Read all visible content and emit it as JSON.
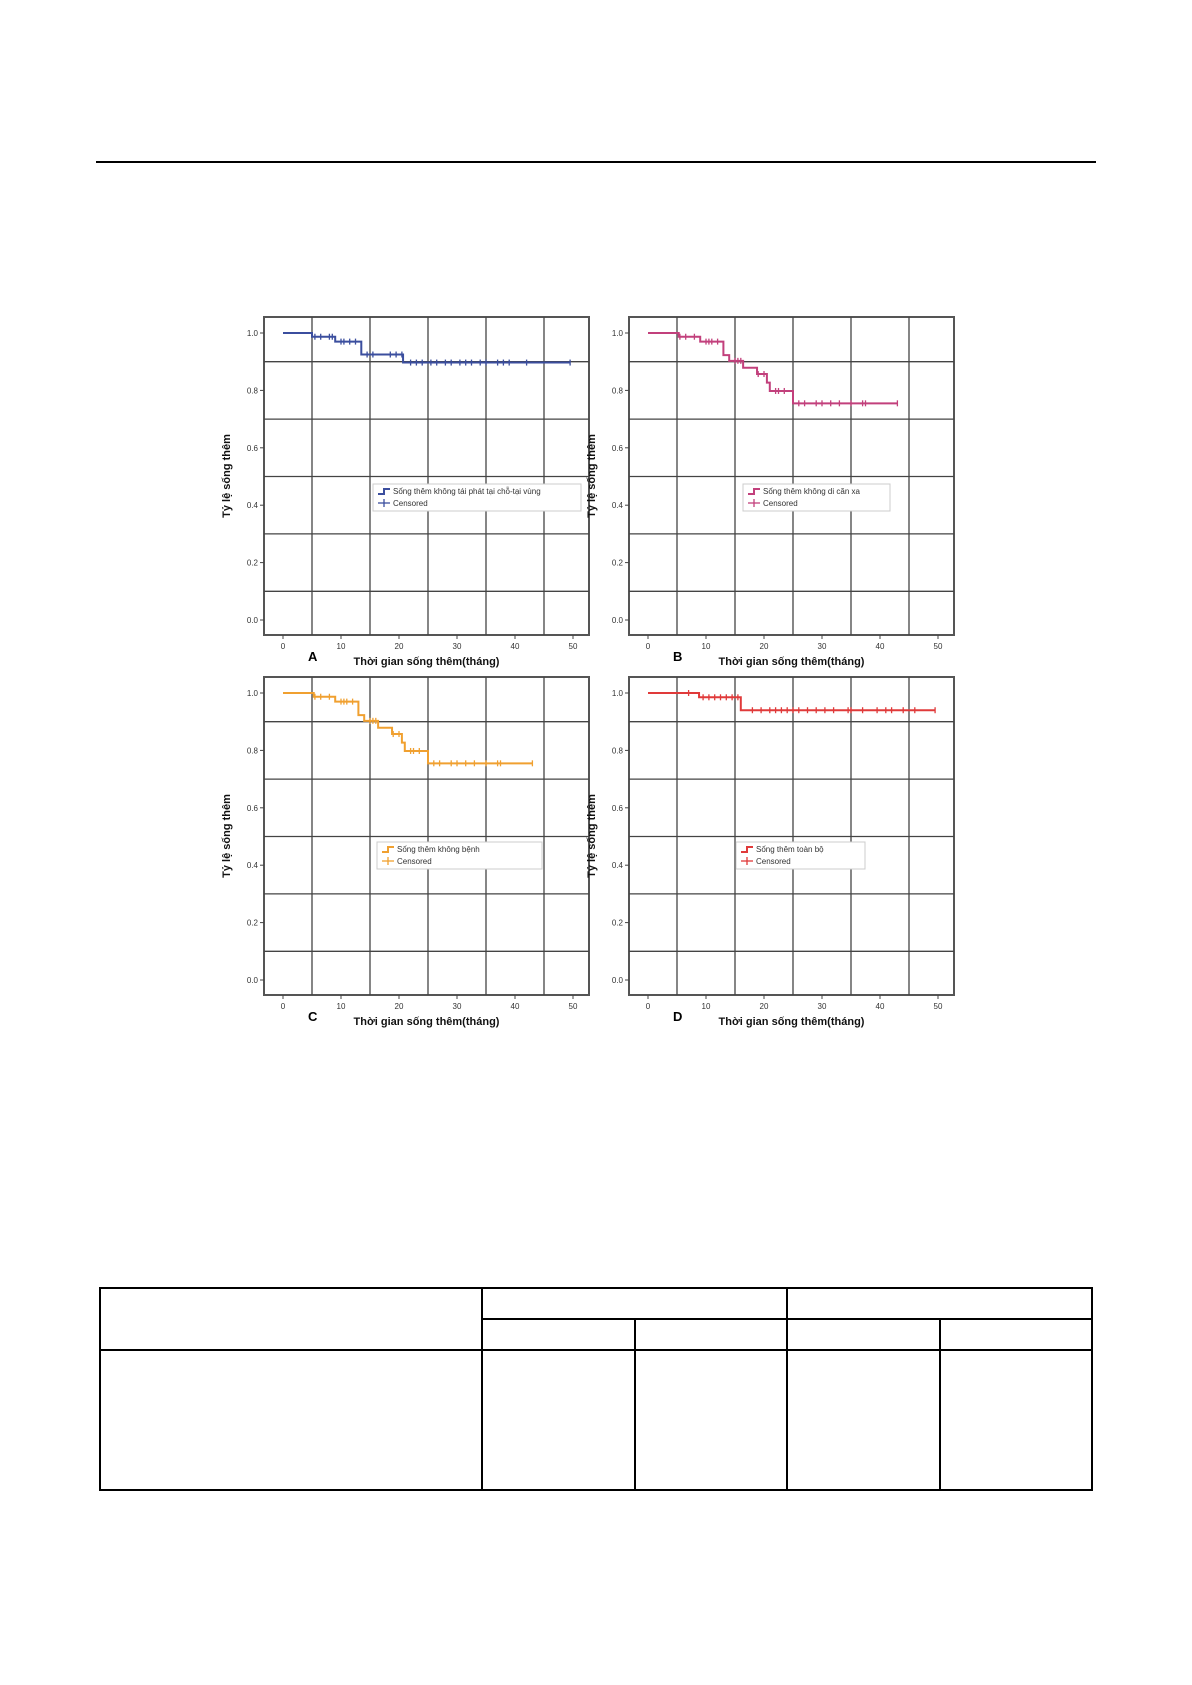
{
  "chart_data": [
    {
      "type": "line",
      "panel_label": "A",
      "xlabel": "Thời gian sống thêm(tháng)",
      "ylabel": "Tỷ lệ sống thêm",
      "xticks": [
        "0",
        "10",
        "20",
        "30",
        "40",
        "50"
      ],
      "yticks": [
        "0.0",
        "0.2",
        "0.4",
        "0.6",
        "0.8",
        "1.0"
      ],
      "xlim": [
        0,
        50
      ],
      "ylim": [
        0,
        1
      ],
      "grid": true,
      "legend": [
        "Sống thêm không tái phát tại chỗ-tại vùng",
        "Censored"
      ],
      "color": "#3b4e9e",
      "steps": [
        [
          0,
          1.0
        ],
        [
          5,
          0.987
        ],
        [
          9,
          0.97
        ],
        [
          13.5,
          0.925
        ],
        [
          20.7,
          0.897
        ],
        [
          49.5,
          0.897
        ]
      ],
      "censored": [
        5.5,
        6.5,
        8,
        8.5,
        10,
        10.5,
        11.5,
        12.5,
        14.5,
        15.5,
        18.5,
        19.5,
        20.5,
        22,
        23,
        24,
        25.5,
        26.5,
        28,
        29,
        30.5,
        31.5,
        32.5,
        34,
        35,
        37,
        38,
        39,
        42,
        49.5
      ]
    },
    {
      "type": "line",
      "panel_label": "B",
      "xlabel": "Thời gian sống thêm(tháng)",
      "ylabel": "Tỷ lệ sống thêm",
      "xticks": [
        "0",
        "10",
        "20",
        "30",
        "40",
        "50"
      ],
      "yticks": [
        "0.0",
        "0.2",
        "0.4",
        "0.6",
        "0.8",
        "1.0"
      ],
      "xlim": [
        0,
        50
      ],
      "ylim": [
        0,
        1
      ],
      "grid": true,
      "legend": [
        "Sống thêm không di căn xa",
        "Censored"
      ],
      "color": "#c2407c",
      "steps": [
        [
          0,
          1.0
        ],
        [
          5.3,
          0.987
        ],
        [
          9,
          0.97
        ],
        [
          13,
          0.923
        ],
        [
          14,
          0.903
        ],
        [
          16.4,
          0.879
        ],
        [
          18.8,
          0.857
        ],
        [
          20.5,
          0.827
        ],
        [
          21,
          0.798
        ],
        [
          25,
          0.755
        ],
        [
          43,
          0.755
        ]
      ],
      "censored": [
        5.5,
        6.5,
        8,
        10,
        10.5,
        11,
        12,
        15,
        15.5,
        16,
        19,
        20,
        22,
        22.5,
        23.5,
        26,
        27,
        29,
        30,
        31.5,
        33,
        35,
        37,
        37.5,
        43
      ]
    },
    {
      "type": "line",
      "panel_label": "C",
      "xlabel": "Thời gian sống thêm(tháng)",
      "ylabel": "Tỷ lệ sống thêm",
      "xticks": [
        "0",
        "10",
        "20",
        "30",
        "40",
        "50"
      ],
      "yticks": [
        "0.0",
        "0.2",
        "0.4",
        "0.6",
        "0.8",
        "1.0"
      ],
      "xlim": [
        0,
        50
      ],
      "ylim": [
        0,
        1
      ],
      "grid": true,
      "legend": [
        "Sống thêm  không bệnh",
        "Censored"
      ],
      "color": "#f0a030",
      "steps": [
        [
          0,
          1.0
        ],
        [
          5.3,
          0.987
        ],
        [
          9,
          0.97
        ],
        [
          13,
          0.923
        ],
        [
          14,
          0.903
        ],
        [
          16.4,
          0.879
        ],
        [
          18.8,
          0.857
        ],
        [
          20.5,
          0.827
        ],
        [
          21,
          0.798
        ],
        [
          25,
          0.755
        ],
        [
          43,
          0.755
        ]
      ],
      "censored": [
        5.5,
        6.5,
        8,
        10,
        10.5,
        11,
        12,
        15,
        15.5,
        16,
        19,
        20,
        22,
        22.5,
        23.5,
        26,
        27,
        29,
        30,
        31.5,
        33,
        35,
        37,
        37.5,
        43
      ]
    },
    {
      "type": "line",
      "panel_label": "D",
      "xlabel": "Thời gian sống thêm(tháng)",
      "ylabel": "Tỷ lệ sống thêm",
      "xticks": [
        "0",
        "10",
        "20",
        "30",
        "40",
        "50"
      ],
      "yticks": [
        "0.0",
        "0.2",
        "0.4",
        "0.6",
        "0.8",
        "1.0"
      ],
      "xlim": [
        0,
        50
      ],
      "ylim": [
        0,
        1
      ],
      "grid": true,
      "legend": [
        "Sống thêm toàn bộ",
        "Censored"
      ],
      "color": "#e03a3a",
      "steps": [
        [
          0,
          1.0
        ],
        [
          8.8,
          0.985
        ],
        [
          16,
          0.94
        ],
        [
          49.5,
          0.94
        ]
      ],
      "censored": [
        7,
        9.5,
        10.5,
        11.5,
        12.5,
        13.5,
        14.5,
        15.5,
        18,
        19.5,
        21,
        22,
        23,
        24,
        25,
        26,
        27.5,
        29,
        30.5,
        32,
        34.5,
        35,
        37,
        39.5,
        41,
        42,
        44,
        46,
        49.5
      ]
    }
  ]
}
